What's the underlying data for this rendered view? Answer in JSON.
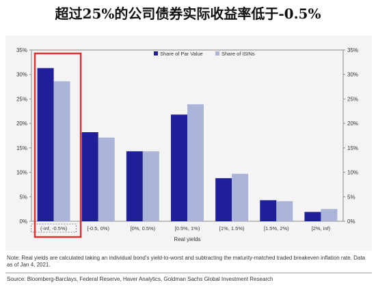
{
  "title": "超过25%的公司债券实际收益率低于-0.5%",
  "chart_data": {
    "type": "bar",
    "categories": [
      "(-inf, -0.5%)",
      "[-0.5, 0%)",
      "[0%, 0.5%)",
      "[0.5%, 1%)",
      "[1%, 1.5%)",
      "[1.5%, 2%)",
      "[2%, inf)"
    ],
    "series": [
      {
        "name": "Share of Par Value",
        "values": [
          31.3,
          18.2,
          14.3,
          21.8,
          8.8,
          4.3,
          1.9
        ],
        "color": "#1f1f99"
      },
      {
        "name": "Share of ISINs",
        "values": [
          28.6,
          17.1,
          14.3,
          23.9,
          9.7,
          4.1,
          2.5
        ],
        "color": "#aab4d8"
      }
    ],
    "xlabel": "Real yields",
    "ylabel": "",
    "ylim": [
      0,
      35
    ],
    "yticks": [
      "0%",
      "5%",
      "10%",
      "15%",
      "20%",
      "25%",
      "30%",
      "35%"
    ],
    "legend_position": "top-right",
    "highlight": {
      "category_index": 0,
      "color": "#e03030"
    }
  },
  "note": "Note: Real yields are calculated taking an individual bond's yield-to-worst and subtracting the maturity-matched traded breakeven inflation rate. Data as of Jan 4, 2021.",
  "source": "Source: Bloomberg-Barclays, Federal Reserve, Haver Analytics, Goldman Sachs Global Investment Research"
}
